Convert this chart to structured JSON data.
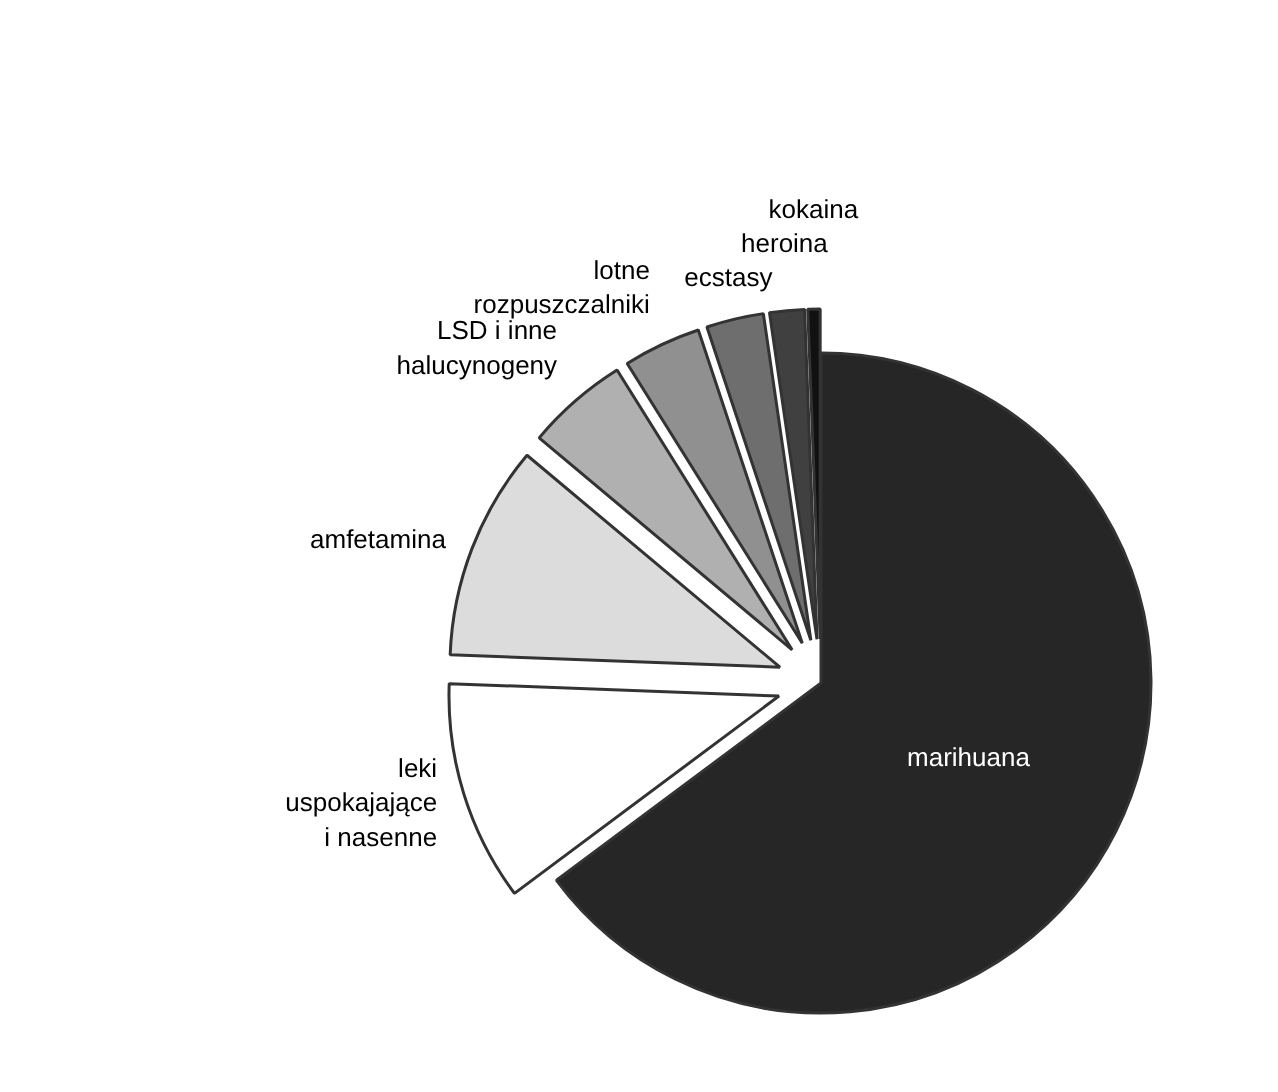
{
  "chart_data": {
    "type": "pie",
    "categories": [
      "marihuana",
      "leki\nuspokajające\ni nasenne",
      "amfetamina",
      "LSD i inne\nhalucynogeny",
      "lotne\nrozpuszczalniki",
      "ecstasy",
      "heroina",
      "kokaina"
    ],
    "values": [
      64.8,
      10.8,
      10.5,
      5.0,
      3.8,
      2.8,
      1.7,
      0.6
    ],
    "colors": [
      "#262626",
      "#ffffff",
      "#dcdcdc",
      "#b0b0b0",
      "#909090",
      "#6e6e6e",
      "#404040",
      "#111111"
    ]
  }
}
